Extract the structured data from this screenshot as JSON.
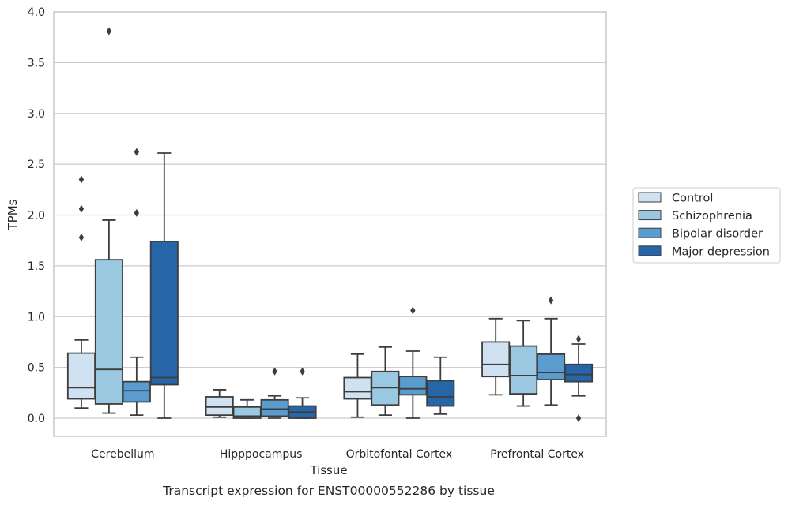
{
  "chart_data": {
    "type": "box",
    "caption": "Transcript expression for ENST00000552286 by tissue",
    "xlabel": "Tissue",
    "ylabel": "TPMs",
    "ylim": [
      -0.18,
      4.0
    ],
    "yticks": [
      "0.0",
      "0.5",
      "1.0",
      "1.5",
      "2.0",
      "2.5",
      "3.0",
      "3.5",
      "4.0"
    ],
    "grid": "horizontal",
    "legend_position": "right",
    "categories": [
      "Cerebellum",
      "Hipppocampus",
      "Orbitofontal Cortex",
      "Prefrontal Cortex"
    ],
    "series": [
      {
        "name": "Control",
        "color": "#d0e1f2",
        "boxes": [
          {
            "whislo": 0.1,
            "q1": 0.19,
            "med": 0.3,
            "q3": 0.64,
            "whishi": 0.77,
            "fliers": [
              1.78,
              2.06,
              2.35
            ]
          },
          {
            "whislo": 0.01,
            "q1": 0.03,
            "med": 0.11,
            "q3": 0.21,
            "whishi": 0.28,
            "fliers": []
          },
          {
            "whislo": 0.01,
            "q1": 0.19,
            "med": 0.26,
            "q3": 0.4,
            "whishi": 0.63,
            "fliers": []
          },
          {
            "whislo": 0.23,
            "q1": 0.41,
            "med": 0.53,
            "q3": 0.75,
            "whishi": 0.98,
            "fliers": []
          }
        ]
      },
      {
        "name": "Schizophrenia",
        "color": "#9ac8e0",
        "boxes": [
          {
            "whislo": 0.05,
            "q1": 0.14,
            "med": 0.48,
            "q3": 1.56,
            "whishi": 1.95,
            "fliers": [
              3.81
            ]
          },
          {
            "whislo": 0.0,
            "q1": 0.0,
            "med": 0.02,
            "q3": 0.11,
            "whishi": 0.18,
            "fliers": []
          },
          {
            "whislo": 0.03,
            "q1": 0.13,
            "med": 0.3,
            "q3": 0.46,
            "whishi": 0.7,
            "fliers": []
          },
          {
            "whislo": 0.12,
            "q1": 0.24,
            "med": 0.42,
            "q3": 0.71,
            "whishi": 0.96,
            "fliers": []
          }
        ]
      },
      {
        "name": "Bipolar disorder",
        "color": "#5b9cce",
        "boxes": [
          {
            "whislo": 0.03,
            "q1": 0.16,
            "med": 0.27,
            "q3": 0.36,
            "whishi": 0.6,
            "fliers": [
              2.02,
              2.62
            ]
          },
          {
            "whislo": 0.0,
            "q1": 0.02,
            "med": 0.09,
            "q3": 0.18,
            "whishi": 0.22,
            "fliers": [
              0.46
            ]
          },
          {
            "whislo": 0.0,
            "q1": 0.23,
            "med": 0.29,
            "q3": 0.41,
            "whishi": 0.66,
            "fliers": [
              1.06
            ]
          },
          {
            "whislo": 0.13,
            "q1": 0.38,
            "med": 0.45,
            "q3": 0.63,
            "whishi": 0.98,
            "fliers": [
              1.16
            ]
          }
        ]
      },
      {
        "name": "Major depression",
        "color": "#2565a8",
        "boxes": [
          {
            "whislo": 0.0,
            "q1": 0.33,
            "med": 0.4,
            "q3": 1.74,
            "whishi": 2.61,
            "fliers": []
          },
          {
            "whislo": 0.0,
            "q1": 0.0,
            "med": 0.06,
            "q3": 0.12,
            "whishi": 0.2,
            "fliers": [
              0.46
            ]
          },
          {
            "whislo": 0.04,
            "q1": 0.12,
            "med": 0.21,
            "q3": 0.37,
            "whishi": 0.6,
            "fliers": []
          },
          {
            "whislo": 0.22,
            "q1": 0.36,
            "med": 0.43,
            "q3": 0.53,
            "whishi": 0.73,
            "fliers": [
              0.0,
              0.78
            ]
          }
        ]
      }
    ]
  }
}
